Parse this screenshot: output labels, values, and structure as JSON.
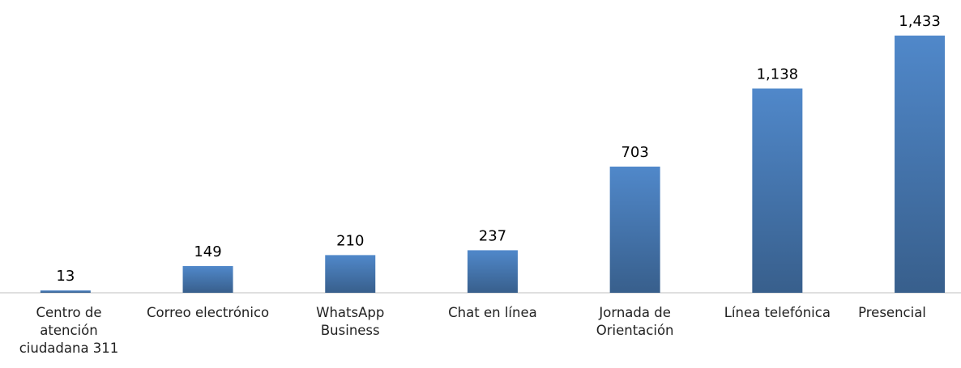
{
  "chart_data": {
    "type": "bar",
    "categories": [
      "Centro de\natención\nciudadana 311",
      "Correo electrónico",
      "WhatsApp\nBusiness",
      "Chat en línea",
      "Jornada de\nOrientación",
      "Línea telefónica",
      "Presencial"
    ],
    "values": [
      13,
      149,
      210,
      237,
      703,
      1138,
      1433
    ],
    "value_labels": [
      "13",
      "149",
      "210",
      "237",
      "703",
      "1,138",
      "1,433"
    ],
    "color": "#4a7ebb"
  }
}
